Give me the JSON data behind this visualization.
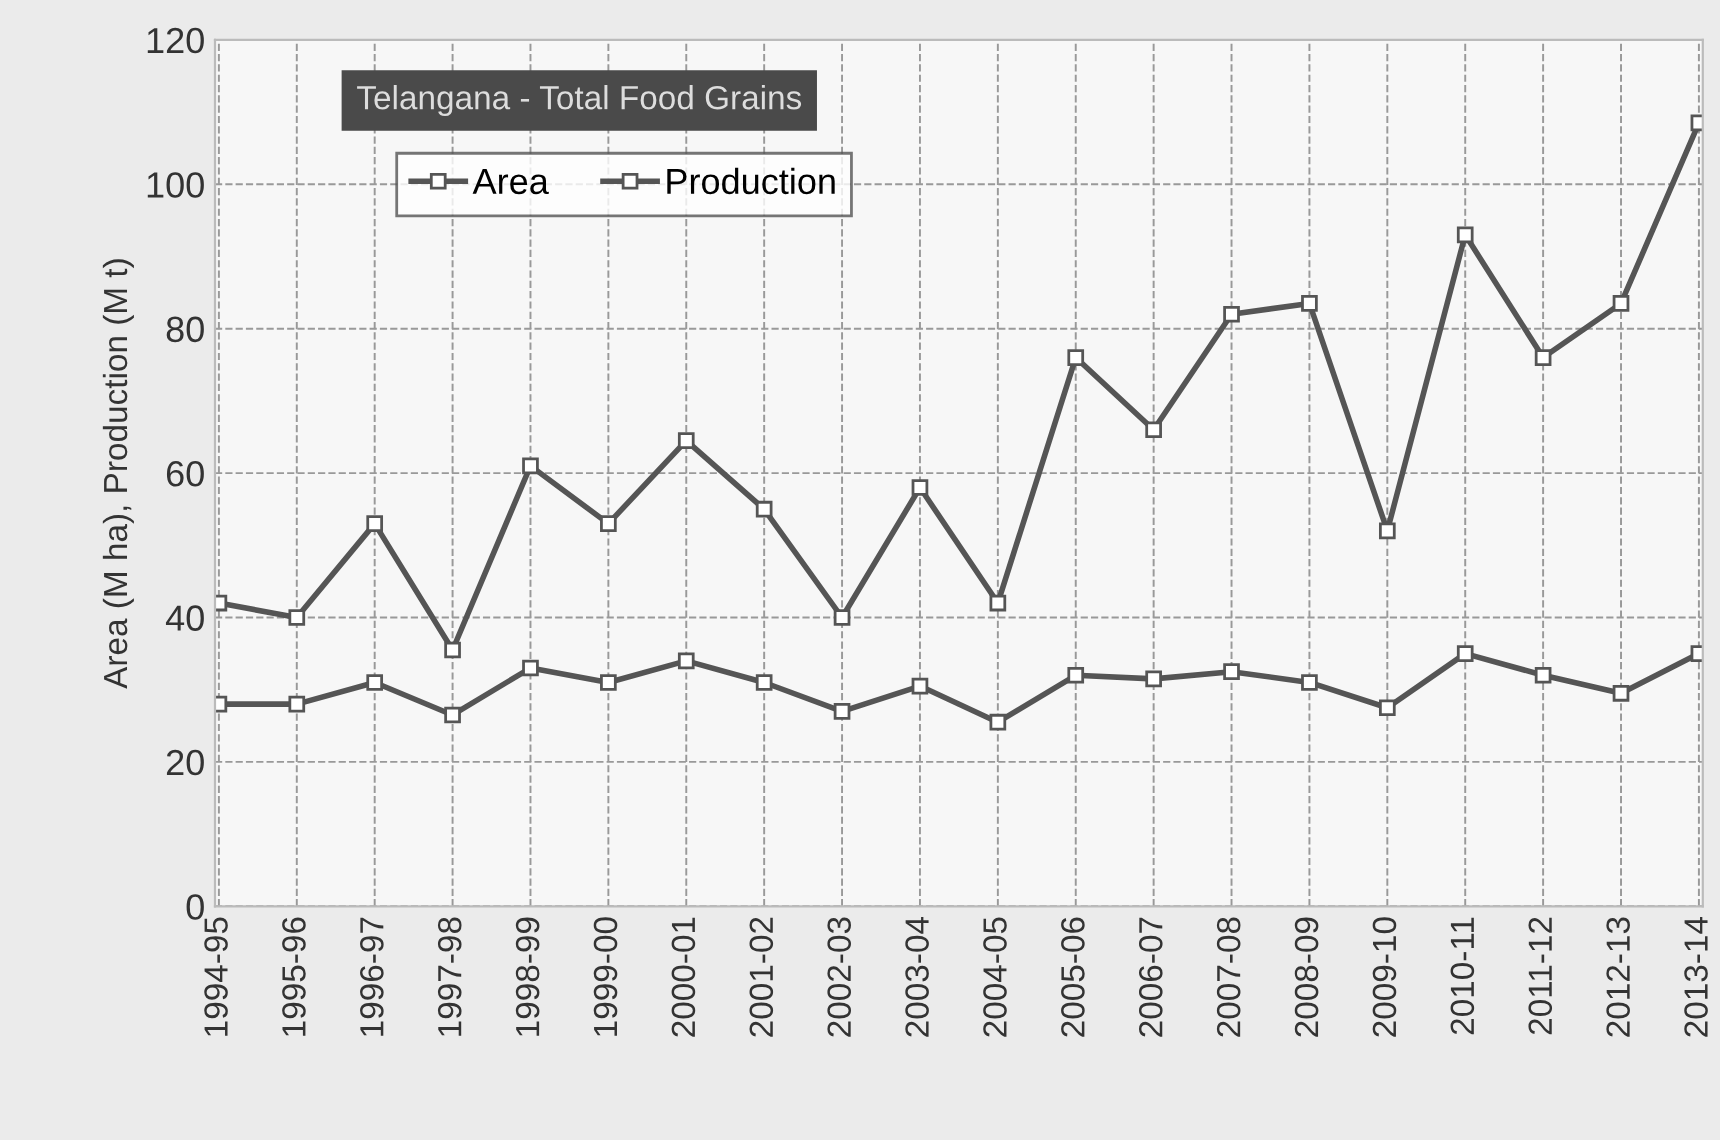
{
  "chart_data": {
    "type": "line",
    "title": "Telangana - Total Food Grains",
    "ylabel": "Area (M ha), Production (M t)",
    "categories": [
      "1994-95",
      "1995-96",
      "1996-97",
      "1997-98",
      "1998-99",
      "1999-00",
      "2000-01",
      "2001-02",
      "2002-03",
      "2003-04",
      "2004-05",
      "2005-06",
      "2006-07",
      "2007-08",
      "2008-09",
      "2009-10",
      "2010-11",
      "2011-12",
      "2012-13",
      "2013-14"
    ],
    "series": [
      {
        "name": "Area",
        "color": "#555555",
        "values": [
          28,
          28,
          31,
          26.5,
          33,
          31,
          34,
          31,
          27,
          30.5,
          25.5,
          32,
          31.5,
          32.5,
          31,
          27.5,
          35,
          32,
          29.5,
          35
        ]
      },
      {
        "name": "Production",
        "color": "#555555",
        "values": [
          42,
          40,
          53,
          35.5,
          61,
          53,
          64.5,
          55,
          40,
          58,
          42,
          76,
          66,
          82,
          83.5,
          52,
          93,
          76,
          83.5,
          108.5
        ]
      }
    ],
    "ylim": [
      0,
      120
    ],
    "yticks": [
      0,
      20,
      40,
      60,
      80,
      100,
      120
    ],
    "grid": true,
    "legend": "top left",
    "marker": "square",
    "line_style": "solid"
  }
}
